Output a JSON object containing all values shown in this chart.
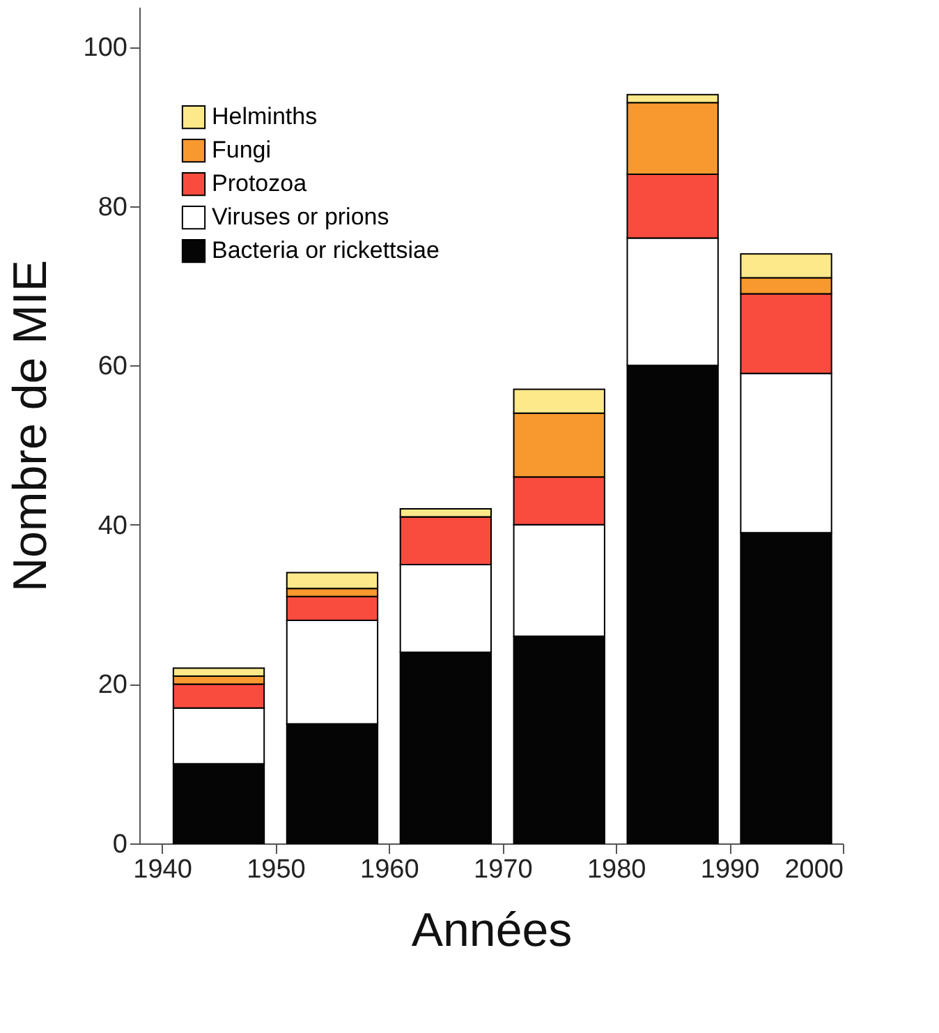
{
  "chart_data": {
    "type": "bar",
    "stacked": true,
    "xlabel": "Années",
    "ylabel": "Nombre de MIE",
    "x": [
      1945,
      1955,
      1965,
      1975,
      1985,
      1995
    ],
    "xlim": [
      1938,
      2000
    ],
    "xticks": [
      1940,
      1950,
      1960,
      1970,
      1980,
      1990,
      2000
    ],
    "ylim": [
      0,
      105
    ],
    "yticks": [
      0,
      20,
      40,
      60,
      80,
      100
    ],
    "series": [
      {
        "name": "Bacteria or rickettsiae",
        "color": "#050505",
        "values": [
          10,
          15,
          24,
          26,
          60,
          39
        ]
      },
      {
        "name": "Viruses or prions",
        "color": "#ffffff",
        "values": [
          7,
          13,
          11,
          14,
          16,
          20
        ]
      },
      {
        "name": "Protozoa",
        "color": "#f94c3f",
        "values": [
          3,
          3,
          6,
          6,
          8,
          10
        ]
      },
      {
        "name": "Fungi",
        "color": "#f7992f",
        "values": [
          1,
          1,
          0,
          8,
          9,
          2
        ]
      },
      {
        "name": "Helminths",
        "color": "#fde98a",
        "values": [
          1,
          2,
          1,
          3,
          1,
          3
        ]
      }
    ],
    "grid": false,
    "legend": "top left"
  }
}
